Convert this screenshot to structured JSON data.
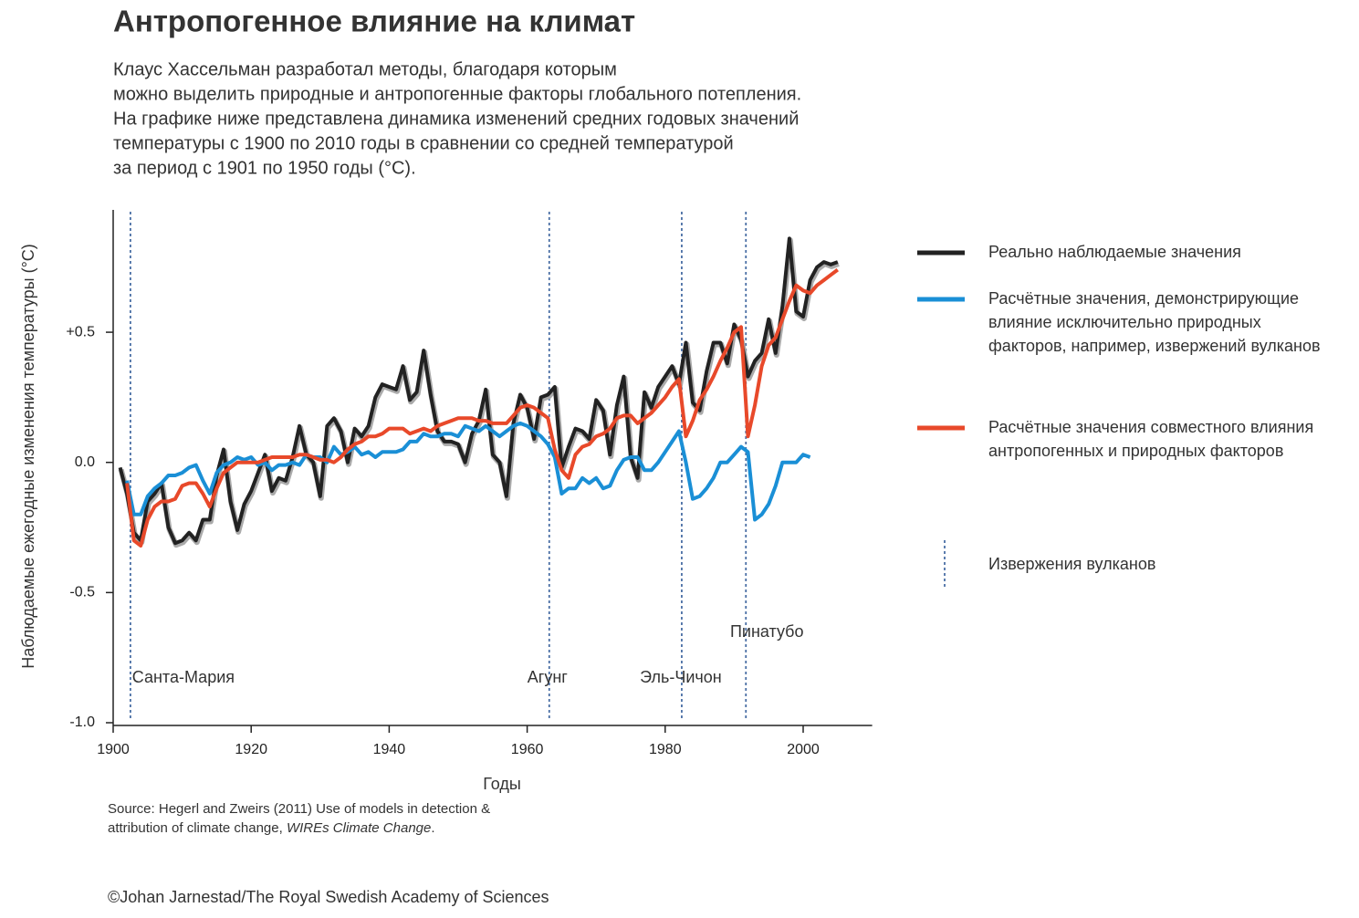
{
  "chart_data": {
    "type": "line",
    "title": "Антропогенное влияние на климат",
    "subtitle": [
      "Клаус Хассельман разработал методы, благодаря которым",
      "можно выделить природные и антропогенные факторы глобального потепления.",
      "На графике ниже представлена динамика изменений средних годовых значений",
      "температуры с 1900 по 2010 годы в сравнении со средней температурой",
      "за период с 1901 по 1950 годы (°C)."
    ],
    "y_label": "Наблюдаемые ежегодные изменения температуры (°C)",
    "x_label": "Годы",
    "source": [
      "Source: Hegerl and Zweirs (2011) Use of models in detection &",
      "attribution of climate change, ",
      "WIREs Climate Change",
      "."
    ],
    "credit": "©Johan Jarnestad/The Royal Swedish Academy of Sciences",
    "xlim": [
      1900,
      2010
    ],
    "xticks": [
      1900,
      1920,
      1940,
      1960,
      1980,
      2000
    ],
    "ylim": [
      -1.0,
      0.97
    ],
    "yticks": [
      {
        "value": -1.0,
        "label": "-1.0"
      },
      {
        "value": -0.5,
        "label": "-0.5"
      },
      {
        "value": 0,
        "label": "0.0"
      },
      {
        "value": 0.5,
        "label": "+0.5"
      }
    ],
    "x": [
      1901,
      1902,
      1903,
      1904,
      1905,
      1906,
      1907,
      1908,
      1909,
      1910,
      1911,
      1912,
      1913,
      1914,
      1915,
      1916,
      1917,
      1918,
      1919,
      1920,
      1921,
      1922,
      1923,
      1924,
      1925,
      1926,
      1927,
      1928,
      1929,
      1930,
      1931,
      1932,
      1933,
      1934,
      1935,
      1936,
      1937,
      1938,
      1939,
      1940,
      1941,
      1942,
      1943,
      1944,
      1945,
      1946,
      1947,
      1948,
      1949,
      1950,
      1951,
      1952,
      1953,
      1954,
      1955,
      1956,
      1957,
      1958,
      1959,
      1960,
      1961,
      1962,
      1963,
      1964,
      1965,
      1966,
      1967,
      1968,
      1969,
      1970,
      1971,
      1972,
      1973,
      1974,
      1975,
      1976,
      1977,
      1978,
      1979,
      1980,
      1981,
      1982,
      1983,
      1984,
      1985,
      1986,
      1987,
      1988,
      1989,
      1990,
      1991,
      1992,
      1993,
      1994,
      1995,
      1996,
      1997,
      1998,
      1999,
      2000,
      2001,
      2002,
      2003,
      2004,
      2005
    ],
    "series": [
      {
        "name": "Реально наблюдаемые значения",
        "color": "#222222",
        "values": [
          -0.02,
          -0.12,
          -0.27,
          -0.3,
          -0.15,
          -0.12,
          -0.08,
          -0.25,
          -0.31,
          -0.3,
          -0.27,
          -0.3,
          -0.22,
          -0.22,
          -0.05,
          0.05,
          -0.15,
          -0.26,
          -0.16,
          -0.11,
          -0.04,
          0.03,
          -0.11,
          -0.06,
          -0.07,
          0.02,
          0.14,
          0.03,
          0.0,
          -0.13,
          0.14,
          0.17,
          0.12,
          0.0,
          0.13,
          0.1,
          0.14,
          0.25,
          0.3,
          0.29,
          0.28,
          0.37,
          0.24,
          0.27,
          0.43,
          0.26,
          0.12,
          0.08,
          0.08,
          0.07,
          0.0,
          0.11,
          0.16,
          0.28,
          0.03,
          0.0,
          -0.13,
          0.15,
          0.26,
          0.21,
          0.09,
          0.25,
          0.26,
          0.29,
          -0.02,
          0.06,
          0.13,
          0.12,
          0.09,
          0.24,
          0.2,
          0.03,
          0.22,
          0.33,
          0.02,
          -0.06,
          0.27,
          0.21,
          0.29,
          0.33,
          0.37,
          0.3,
          0.46,
          0.23,
          0.2,
          0.35,
          0.46,
          0.46,
          0.38,
          0.53,
          0.47,
          0.33,
          0.39,
          0.42,
          0.55,
          0.42,
          0.6,
          0.86,
          0.58,
          0.56,
          0.7,
          0.75,
          0.77,
          0.76,
          0.77
        ]
      },
      {
        "name": "Расчётные значения, демонстрирующие\nвлияние исключительно природных\nфакторов, например, извержений вулканов",
        "color": "#1a8fd6",
        "values": [
          null,
          -0.07,
          -0.2,
          -0.2,
          -0.13,
          -0.1,
          -0.08,
          -0.05,
          -0.05,
          -0.04,
          -0.02,
          -0.01,
          -0.07,
          -0.12,
          -0.04,
          -0.01,
          0.0,
          0.02,
          0.01,
          0.02,
          -0.01,
          0.0,
          -0.03,
          -0.01,
          -0.01,
          0.0,
          -0.01,
          0.03,
          0.02,
          0.02,
          0.0,
          0.06,
          0.03,
          0.04,
          0.06,
          0.03,
          0.04,
          0.02,
          0.04,
          0.04,
          0.04,
          0.05,
          0.08,
          0.08,
          0.11,
          0.1,
          0.1,
          0.11,
          0.11,
          0.1,
          0.14,
          0.13,
          0.12,
          0.14,
          0.12,
          0.1,
          0.12,
          0.14,
          0.15,
          0.14,
          0.12,
          0.1,
          0.07,
          0.02,
          -0.12,
          -0.1,
          -0.1,
          -0.06,
          -0.08,
          -0.06,
          -0.1,
          -0.09,
          -0.03,
          0.01,
          0.02,
          0.02,
          -0.03,
          -0.03,
          0.0,
          0.04,
          0.08,
          0.12,
          0.0,
          -0.14,
          -0.13,
          -0.1,
          -0.06,
          0.0,
          0.0,
          0.03,
          0.06,
          0.04,
          -0.22,
          -0.2,
          -0.16,
          -0.09,
          0.0,
          0.0,
          0.0,
          0.03,
          0.02,
          null,
          null,
          null,
          null
        ]
      },
      {
        "name": "Расчётные значения совместного влияния\nантропогенных и природных факторов",
        "color": "#e8492a",
        "values": [
          null,
          -0.08,
          -0.3,
          -0.32,
          -0.22,
          -0.17,
          -0.15,
          -0.15,
          -0.14,
          -0.09,
          -0.08,
          -0.08,
          -0.12,
          -0.17,
          -0.1,
          -0.04,
          -0.02,
          0.0,
          0.0,
          0.0,
          0.0,
          0.01,
          0.02,
          0.02,
          0.02,
          0.02,
          0.03,
          0.03,
          0.02,
          0.01,
          0.01,
          0.0,
          0.02,
          0.05,
          0.07,
          0.08,
          0.1,
          0.1,
          0.11,
          0.13,
          0.13,
          0.13,
          0.11,
          0.12,
          0.13,
          0.12,
          0.14,
          0.15,
          0.16,
          0.17,
          0.17,
          0.17,
          0.16,
          0.16,
          0.15,
          0.15,
          0.15,
          0.18,
          0.21,
          0.22,
          0.21,
          0.19,
          0.17,
          0.05,
          -0.03,
          -0.06,
          0.03,
          0.06,
          0.07,
          0.1,
          0.11,
          0.13,
          0.17,
          0.18,
          0.18,
          0.15,
          0.17,
          0.19,
          0.22,
          0.25,
          0.29,
          0.32,
          0.1,
          0.16,
          0.24,
          0.28,
          0.33,
          0.39,
          0.44,
          0.5,
          0.52,
          0.1,
          0.22,
          0.37,
          0.45,
          0.48,
          0.55,
          0.62,
          0.68,
          0.66,
          0.65,
          0.68,
          0.7,
          0.72,
          0.74
        ]
      }
    ],
    "volcano_legend": "Извержения вулканов",
    "volcano_color": "#4a6fa5",
    "volcanoes": [
      {
        "name": "Санта-Мария",
        "x": 1902.5
      },
      {
        "name": "Агунг",
        "x": 1963.2
      },
      {
        "name": "Эль-Чичон",
        "x": 1982.4
      },
      {
        "name": "Пинатубо",
        "x": 1991.7
      }
    ]
  }
}
